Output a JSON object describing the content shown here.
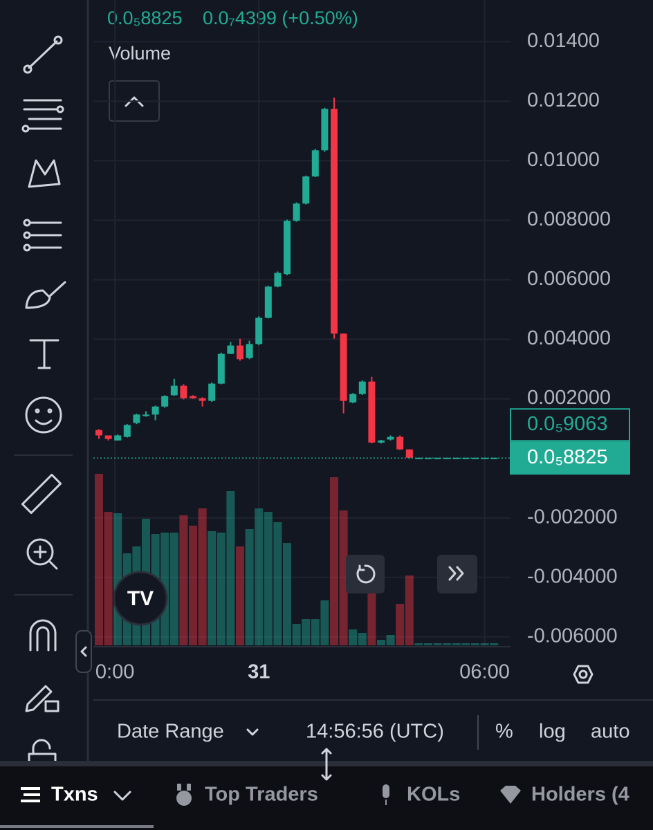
{
  "header": {
    "price": "0.0₅8825",
    "change": "0.0₇4399 (+0.50%)",
    "pane_label": "Volume"
  },
  "chart_data": {
    "type": "candlestick",
    "ylim": [
      -0.00633,
      0.0154
    ],
    "yticks": [
      {
        "value": 0.014,
        "label": "0.01400"
      },
      {
        "value": 0.012,
        "label": "0.01200"
      },
      {
        "value": 0.01,
        "label": "0.01000"
      },
      {
        "value": 0.008,
        "label": "0.008000"
      },
      {
        "value": 0.006,
        "label": "0.006000"
      },
      {
        "value": 0.004,
        "label": "0.004000"
      },
      {
        "value": 0.002,
        "label": "0.002000"
      },
      {
        "value": -0.002,
        "label": "-0.002000"
      },
      {
        "value": -0.004,
        "label": "-0.004000"
      },
      {
        "value": -0.006,
        "label": "-0.006000"
      }
    ],
    "xticks": [
      {
        "value": 1.7,
        "label": "0:00"
      },
      {
        "value": 17,
        "label": "31"
      },
      {
        "value": 41,
        "label": "06:00"
      }
    ],
    "grid": true,
    "up_color": "#22ab94",
    "down_color": "#f23645",
    "open": [
      0.00095,
      0.00077,
      0.0006,
      0.00072,
      0.00119,
      0.00142,
      0.00147,
      0.00174,
      0.00212,
      0.00244,
      0.00209,
      0.00202,
      0.00193,
      0.00251,
      0.00351,
      0.00379,
      0.00337,
      0.00384,
      0.00472,
      0.00577,
      0.00619,
      0.00798,
      0.00856,
      0.00947,
      0.01035,
      0.01174,
      0.00419,
      0.00188,
      0.00216,
      0.00258,
      0.00053,
      0.00063,
      0.00072,
      0.0003,
      2e-05,
      2e-05,
      2e-05,
      2e-05,
      2e-05,
      2e-05,
      2e-05,
      2e-05,
      2e-05
    ],
    "high": [
      0.00098,
      0.00077,
      0.0008,
      0.00115,
      0.0015,
      0.00158,
      0.00177,
      0.00212,
      0.00267,
      0.00249,
      0.00212,
      0.00205,
      0.00255,
      0.00355,
      0.00391,
      0.00402,
      0.00395,
      0.00477,
      0.0058,
      0.00628,
      0.00802,
      0.0086,
      0.0095,
      0.0104,
      0.01178,
      0.01212,
      0.00419,
      0.00219,
      0.00262,
      0.00274,
      0.00062,
      0.00077,
      0.00077,
      0.0003,
      2e-05,
      2e-05,
      2e-05,
      2e-05,
      2e-05,
      2e-05,
      2e-05,
      2e-05,
      2e-05
    ],
    "low": [
      0.00065,
      0.0006,
      0.0006,
      0.0007,
      0.00115,
      0.0014,
      0.00128,
      0.0017,
      0.0021,
      0.00198,
      0.002,
      0.00174,
      0.0019,
      0.00249,
      0.0035,
      0.00328,
      0.00333,
      0.0038,
      0.0047,
      0.00575,
      0.00615,
      0.00795,
      0.00853,
      0.00945,
      0.0103,
      0.00402,
      0.00151,
      0.00185,
      0.00213,
      0.0005,
      0.0005,
      0.0006,
      0.00028,
      1e-05,
      2e-05,
      2e-05,
      2e-05,
      2e-05,
      2e-05,
      2e-05,
      2e-05,
      2e-05,
      2e-05
    ],
    "close": [
      0.00077,
      0.00065,
      0.00077,
      0.00112,
      0.00147,
      0.00147,
      0.00174,
      0.00209,
      0.00244,
      0.00202,
      0.00202,
      0.00193,
      0.00251,
      0.00351,
      0.00379,
      0.00333,
      0.00384,
      0.00472,
      0.00577,
      0.00623,
      0.00798,
      0.00856,
      0.00947,
      0.01035,
      0.01174,
      0.00419,
      0.00193,
      0.00216,
      0.00258,
      0.00053,
      0.0006,
      0.00072,
      0.0003,
      2e-05,
      2e-05,
      2e-05,
      2e-05,
      2e-05,
      2e-05,
      2e-05,
      2e-05,
      2e-05,
      2e-05
    ],
    "volume": [
      248,
      193,
      191,
      133,
      143,
      183,
      161,
      163,
      163,
      188,
      173,
      198,
      165,
      163,
      223,
      143,
      168,
      198,
      193,
      178,
      148,
      31,
      38,
      38,
      65,
      243,
      195,
      23,
      18,
      78,
      8,
      15,
      60,
      101,
      3,
      3,
      3,
      3,
      3,
      3,
      3,
      3,
      3
    ],
    "price_labels": [
      {
        "value": 9.063e-06,
        "label": "0.0₅9063"
      },
      {
        "value": 8.825e-06,
        "label": "0.0₅8825"
      }
    ]
  },
  "footer": {
    "date_range": "Date Range",
    "time": "14:56:56 (UTC)",
    "percent": "%",
    "log": "log",
    "auto": "auto"
  },
  "tabs": [
    "Txns",
    "Top Traders",
    "KOLs",
    "Holders (4"
  ]
}
